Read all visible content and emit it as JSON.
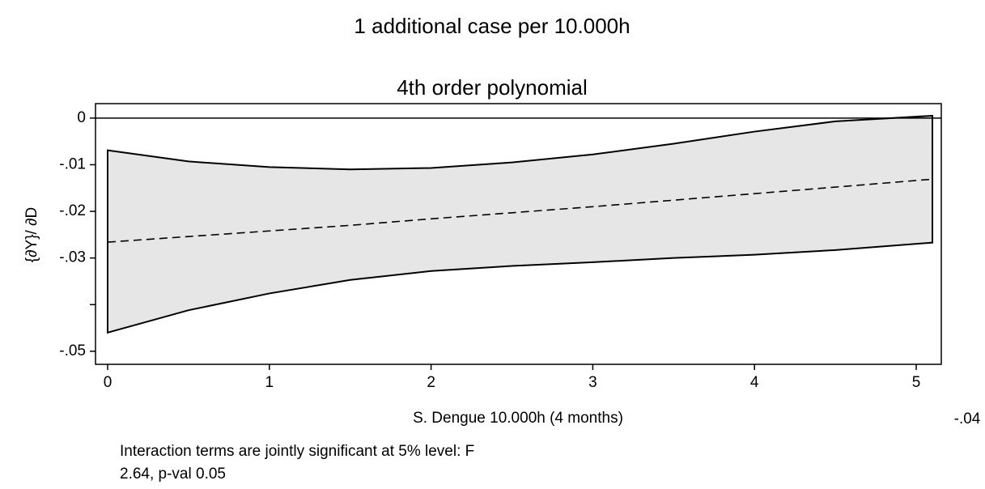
{
  "chart_data": {
    "type": "band",
    "title": "1 additional case per 10.000h",
    "subtitle": "4th order polynomial",
    "x_label": "S. Dengue 10.000h (4 months)",
    "y_label": "{∂Y}/ ∂D",
    "corner_label": "-.04",
    "notes": [
      "Interaction terms are jointly significant at 5% level: F",
      "2.64, p-val 0.05"
    ],
    "x": [
      0,
      0.5,
      1,
      1.5,
      2,
      2.5,
      3,
      3.5,
      4,
      4.5,
      5.1
    ],
    "series": [
      {
        "values": [
          -0.0069,
          -0.0093,
          -0.0105,
          -0.011,
          -0.0107,
          -0.0095,
          -0.0078,
          -0.0055,
          -0.0029,
          -0.0007,
          0.0005
        ],
        "color": "#e6e6e6"
      },
      {
        "values": [
          -0.046,
          -0.0412,
          -0.0376,
          -0.0347,
          -0.0328,
          -0.0317,
          -0.0309,
          -0.03,
          -0.0293,
          -0.0283,
          -0.0267
        ],
        "color": "#e6e6e6"
      },
      {
        "values": [
          -0.0266,
          -0.0254,
          -0.0242,
          -0.023,
          -0.0216,
          -0.0203,
          -0.019,
          -0.0176,
          -0.0162,
          -0.0148,
          -0.0131
        ],
        "color": "#000000"
      }
    ],
    "reference_line": 0,
    "xlim": [
      -0.075,
      5.155
    ],
    "ylim": [
      -0.0528,
      0.0031
    ],
    "xticks": [
      0,
      1,
      2,
      3,
      4,
      5
    ],
    "yticks": [
      {
        "value": 0,
        "label": "0"
      },
      {
        "value": -0.01,
        "label": "-.01"
      },
      {
        "value": -0.02,
        "label": "-.02"
      },
      {
        "value": -0.03,
        "label": "-.03"
      },
      {
        "value": -0.05,
        "label": "-.05"
      }
    ],
    "y_minor_ticks": [
      -0.04
    ]
  }
}
